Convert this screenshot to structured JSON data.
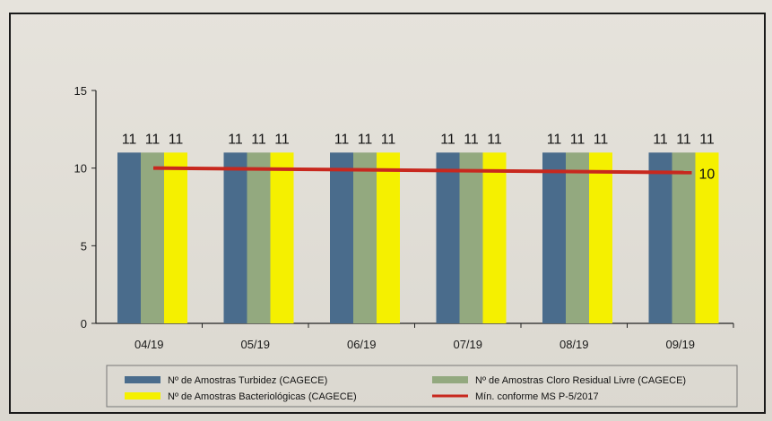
{
  "chart_data": {
    "type": "bar",
    "categories": [
      "04/19",
      "05/19",
      "06/19",
      "07/19",
      "08/19",
      "09/19"
    ],
    "series": [
      {
        "name": "Nº de Amostras Turbidez (CAGECE)",
        "values": [
          11,
          11,
          11,
          11,
          11,
          11
        ],
        "color": "#4a6c8c"
      },
      {
        "name": "Nº de Amostras Cloro Residual Livre (CAGECE)",
        "values": [
          11,
          11,
          11,
          11,
          11,
          11
        ],
        "color": "#93a97f"
      },
      {
        "name": "Nº de Amostras Bacteriológicas (CAGECE)",
        "values": [
          11,
          11,
          11,
          11,
          11,
          11
        ],
        "color": "#f5f000"
      }
    ],
    "line": {
      "name": "Mín. conforme MS  P-5/2017",
      "values": [
        10,
        10,
        10,
        10,
        10,
        10
      ],
      "color": "#c8281e",
      "end_label": "10"
    },
    "ylim": [
      0,
      15
    ],
    "yticks": [
      "0",
      "5",
      "10",
      "15"
    ],
    "grid": false,
    "legend": "bottom"
  }
}
